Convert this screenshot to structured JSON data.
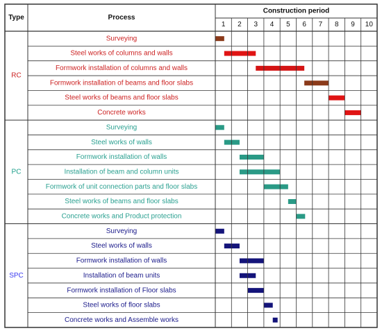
{
  "chart_data": {
    "type": "gantt",
    "header": {
      "type_label": "Type",
      "process_label": "Process",
      "period_label": "Construction period"
    },
    "periods": [
      "1",
      "2",
      "3",
      "4",
      "5",
      "6",
      "7",
      "8",
      "9",
      "10"
    ],
    "groups": [
      {
        "name": "RC",
        "label_color": "#cc2222",
        "text_color": "#cc2222",
        "tasks": [
          {
            "label": "Surveying",
            "start": 1.0,
            "end": 1.55,
            "color": "#8b3a1a"
          },
          {
            "label": "Steel works of columns and walls",
            "start": 1.55,
            "end": 3.5,
            "color": "#e01414"
          },
          {
            "label": "Formwork installation of columns and walls",
            "start": 3.5,
            "end": 6.5,
            "color": "#d41414"
          },
          {
            "label": "Formwork installation of beams and floor slabs",
            "start": 6.5,
            "end": 8.0,
            "color": "#8b3a1a"
          },
          {
            "label": "Steel works of beams and floor slabs",
            "start": 8.0,
            "end": 9.0,
            "color": "#e01414"
          },
          {
            "label": "Concrete works",
            "start": 9.0,
            "end": 10.0,
            "color": "#e01414"
          }
        ]
      },
      {
        "name": "PC",
        "label_color": "#1b9e8a",
        "text_color": "#2aa090",
        "tasks": [
          {
            "label": "Surveying",
            "start": 1.0,
            "end": 1.55,
            "color": "#2a9a86"
          },
          {
            "label": "Steel works of walls",
            "start": 1.55,
            "end": 2.5,
            "color": "#2a9a86"
          },
          {
            "label": "Formwork installation of walls",
            "start": 2.5,
            "end": 4.0,
            "color": "#2a9a86"
          },
          {
            "label": "Installation of beam and column units",
            "start": 2.5,
            "end": 5.0,
            "color": "#2a9a86"
          },
          {
            "label": "Formwork of unit connection parts and floor slabs",
            "start": 4.0,
            "end": 5.5,
            "color": "#2a9a86"
          },
          {
            "label": "Steel works of beams and floor slabs",
            "start": 5.5,
            "end": 6.0,
            "color": "#2a9a86"
          },
          {
            "label": "Concrete works and Product protection",
            "start": 6.0,
            "end": 6.55,
            "color": "#2a9a86"
          }
        ]
      },
      {
        "name": "SPC",
        "label_color": "#3a3af0",
        "text_color": "#1a1a8a",
        "tasks": [
          {
            "label": "Surveying",
            "start": 1.0,
            "end": 1.55,
            "color": "#14147a"
          },
          {
            "label": "Steel works of walls",
            "start": 1.55,
            "end": 2.5,
            "color": "#14147a"
          },
          {
            "label": "Formwork installation of walls",
            "start": 2.5,
            "end": 4.0,
            "color": "#14147a"
          },
          {
            "label": "Installation of beam units",
            "start": 2.5,
            "end": 3.5,
            "color": "#14147a"
          },
          {
            "label": "Formwork installation of Floor slabs",
            "start": 3.0,
            "end": 4.0,
            "color": "#14147a"
          },
          {
            "label": "Steel works of floor slabs",
            "start": 4.0,
            "end": 4.55,
            "color": "#14147a"
          },
          {
            "label": "Concrete works and Assemble works",
            "start": 4.55,
            "end": 4.85,
            "color": "#14147a"
          }
        ]
      }
    ]
  }
}
